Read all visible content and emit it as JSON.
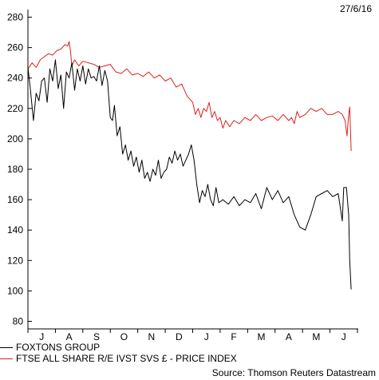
{
  "date_label": "27/6/16",
  "source_label": "Source: Thomson Reuters Datastream",
  "chart_data": {
    "type": "line",
    "ylim": [
      75,
      285
    ],
    "x_range": [
      0,
      12.03
    ],
    "yticks": [
      80,
      100,
      120,
      140,
      160,
      180,
      200,
      220,
      240,
      260,
      280
    ],
    "categories": [
      "J",
      "A",
      "S",
      "O",
      "N",
      "D",
      "J",
      "F",
      "M",
      "A",
      "M",
      "J"
    ],
    "series": [
      {
        "name": "FOXTONS GROUP",
        "color": "#000000",
        "x": [
          0,
          0.08,
          0.2,
          0.3,
          0.4,
          0.5,
          0.6,
          0.7,
          0.8,
          0.9,
          1.0,
          1.1,
          1.2,
          1.3,
          1.4,
          1.5,
          1.6,
          1.7,
          1.8,
          1.9,
          2.0,
          2.1,
          2.2,
          2.3,
          2.4,
          2.5,
          2.6,
          2.7,
          2.8,
          2.9,
          3.0,
          3.08,
          3.15,
          3.25,
          3.35,
          3.45,
          3.55,
          3.65,
          3.75,
          3.85,
          3.95,
          4.05,
          4.15,
          4.25,
          4.35,
          4.45,
          4.55,
          4.65,
          4.75,
          4.85,
          4.95,
          5.05,
          5.15,
          5.25,
          5.35,
          5.45,
          5.55,
          5.65,
          5.75,
          5.85,
          5.95,
          6.05,
          6.15,
          6.25,
          6.35,
          6.45,
          6.55,
          6.65,
          6.75,
          6.85,
          6.95,
          7.1,
          7.3,
          7.5,
          7.7,
          7.9,
          8.1,
          8.3,
          8.5,
          8.7,
          8.9,
          9.1,
          9.3,
          9.5,
          9.7,
          9.9,
          10.1,
          10.3,
          10.5,
          10.7,
          10.9,
          11.1,
          11.3,
          11.45,
          11.5,
          11.6,
          11.68,
          11.72,
          11.77
        ],
        "values": [
          247,
          234,
          212,
          230,
          225,
          238,
          240,
          224,
          246,
          238,
          252,
          233,
          242,
          220,
          244,
          240,
          250,
          232,
          246,
          238,
          248,
          236,
          246,
          240,
          241,
          238,
          248,
          235,
          245,
          238,
          214,
          212,
          222,
          202,
          208,
          190,
          196,
          186,
          192,
          182,
          188,
          178,
          186,
          174,
          178,
          172,
          180,
          176,
          186,
          174,
          178,
          180,
          188,
          184,
          192,
          186,
          190,
          182,
          186,
          190,
          196,
          186,
          170,
          158,
          166,
          162,
          170,
          160,
          156,
          168,
          158,
          160,
          157,
          162,
          156,
          160,
          158,
          164,
          154,
          168,
          160,
          166,
          158,
          162,
          150,
          142,
          140,
          150,
          162,
          164,
          166,
          162,
          164,
          146,
          168,
          168,
          150,
          120,
          101
        ]
      },
      {
        "name": "FTSE ALL SHARE R/E IVST SVS £ - PRICE INDEX",
        "color": "#d9211f",
        "x": [
          0,
          0.15,
          0.3,
          0.45,
          0.6,
          0.75,
          0.9,
          1.05,
          1.2,
          1.35,
          1.45,
          1.5,
          1.55,
          1.6,
          1.7,
          1.85,
          2.0,
          2.2,
          2.4,
          2.6,
          2.8,
          3.0,
          3.2,
          3.4,
          3.6,
          3.8,
          4.0,
          4.2,
          4.4,
          4.6,
          4.8,
          5.0,
          5.2,
          5.4,
          5.6,
          5.8,
          6.0,
          6.1,
          6.2,
          6.3,
          6.4,
          6.5,
          6.6,
          6.7,
          6.8,
          6.9,
          7.0,
          7.1,
          7.2,
          7.35,
          7.5,
          7.7,
          7.9,
          8.1,
          8.3,
          8.5,
          8.7,
          8.9,
          9.1,
          9.3,
          9.5,
          9.6,
          9.7,
          9.8,
          9.9,
          10.1,
          10.3,
          10.5,
          10.7,
          10.9,
          11.1,
          11.3,
          11.45,
          11.55,
          11.62,
          11.68,
          11.72,
          11.77
        ],
        "values": [
          246,
          250,
          247,
          252,
          254,
          256,
          255,
          258,
          259,
          262,
          261,
          264,
          258,
          248,
          252,
          248,
          251,
          250,
          249,
          247,
          248,
          249,
          244,
          243,
          246,
          242,
          243,
          241,
          244,
          240,
          242,
          238,
          240,
          234,
          236,
          228,
          224,
          216,
          220,
          214,
          220,
          218,
          224,
          214,
          218,
          212,
          214,
          207,
          212,
          208,
          212,
          210,
          214,
          212,
          216,
          212,
          214,
          215,
          212,
          216,
          212,
          214,
          210,
          218,
          214,
          216,
          220,
          218,
          220,
          216,
          216,
          218,
          216,
          212,
          202,
          216,
          221,
          192
        ]
      }
    ]
  }
}
